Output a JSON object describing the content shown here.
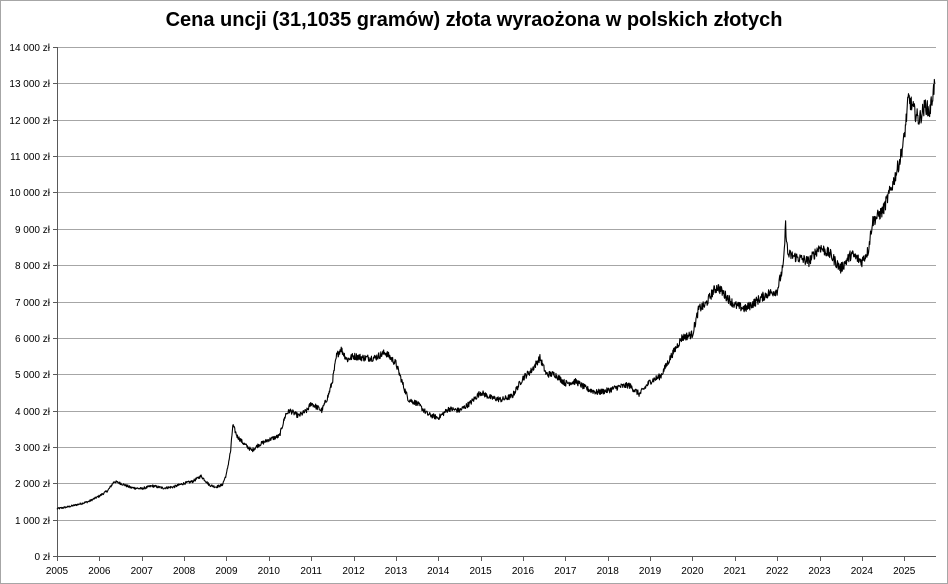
{
  "chart_data": {
    "type": "line",
    "title": "Cena uncji (31,1035 gramów) złota wyraożona w polskich złotych",
    "xlabel": "",
    "ylabel": "",
    "ylim": [
      0,
      14000
    ],
    "xlim": [
      2005,
      2025.75
    ],
    "grid": true,
    "legend": "none",
    "line_color": "#000000",
    "grid_color": "#a6a6a6",
    "y_ticks": [
      {
        "value": 0,
        "label": "0 zł"
      },
      {
        "value": 1000,
        "label": "1 000 zł"
      },
      {
        "value": 2000,
        "label": "2 000 zł"
      },
      {
        "value": 3000,
        "label": "3 000 zł"
      },
      {
        "value": 4000,
        "label": "4 000 zł"
      },
      {
        "value": 5000,
        "label": "5 000 zł"
      },
      {
        "value": 6000,
        "label": "6 000 zł"
      },
      {
        "value": 7000,
        "label": "7 000 zł"
      },
      {
        "value": 8000,
        "label": "8 000 zł"
      },
      {
        "value": 9000,
        "label": "9 000 zł"
      },
      {
        "value": 10000,
        "label": "10 000 zł"
      },
      {
        "value": 11000,
        "label": "11 000 zł"
      },
      {
        "value": 12000,
        "label": "12 000 zł"
      },
      {
        "value": 13000,
        "label": "13 000 zł"
      },
      {
        "value": 14000,
        "label": "14 000 zł"
      }
    ],
    "x_ticks": [
      "2005",
      "2006",
      "2007",
      "2008",
      "2009",
      "2010",
      "2011",
      "2012",
      "2013",
      "2014",
      "2015",
      "2016",
      "2017",
      "2018",
      "2019",
      "2020",
      "2021",
      "2022",
      "2023",
      "2024",
      "2025"
    ],
    "series": [
      {
        "x": [
          2005.0,
          2005.25,
          2005.5,
          2005.75,
          2006.0,
          2006.2,
          2006.35,
          2006.5,
          2006.75,
          2007.0,
          2007.25,
          2007.5,
          2007.75,
          2008.0,
          2008.2,
          2008.4,
          2008.6,
          2008.75,
          2008.9,
          2009.0,
          2009.1,
          2009.15,
          2009.25,
          2009.4,
          2009.6,
          2009.75,
          2010.0,
          2010.25,
          2010.4,
          2010.5,
          2010.7,
          2010.9,
          2011.0,
          2011.25,
          2011.4,
          2011.5,
          2011.6,
          2011.7,
          2011.85,
          2012.0,
          2012.25,
          2012.5,
          2012.75,
          2013.0,
          2013.2,
          2013.3,
          2013.5,
          2013.75,
          2014.0,
          2014.25,
          2014.5,
          2014.75,
          2015.0,
          2015.25,
          2015.5,
          2015.75,
          2016.0,
          2016.2,
          2016.4,
          2016.55,
          2016.75,
          2017.0,
          2017.25,
          2017.5,
          2017.75,
          2018.0,
          2018.25,
          2018.5,
          2018.75,
          2019.0,
          2019.25,
          2019.5,
          2019.75,
          2020.0,
          2020.15,
          2020.3,
          2020.5,
          2020.6,
          2020.75,
          2021.0,
          2021.25,
          2021.5,
          2021.75,
          2022.0,
          2022.15,
          2022.2,
          2022.25,
          2022.5,
          2022.75,
          2023.0,
          2023.25,
          2023.5,
          2023.75,
          2024.0,
          2024.15,
          2024.25,
          2024.5,
          2024.75,
          2024.9,
          2025.0,
          2025.1,
          2025.25,
          2025.35,
          2025.5,
          2025.6,
          2025.72
        ],
        "values": [
          1300,
          1350,
          1420,
          1500,
          1650,
          1800,
          2050,
          2000,
          1880,
          1850,
          1930,
          1870,
          1900,
          2000,
          2050,
          2200,
          1950,
          1900,
          1950,
          2250,
          2900,
          3600,
          3300,
          3100,
          2900,
          3050,
          3200,
          3300,
          3900,
          4000,
          3850,
          4000,
          4200,
          4000,
          4400,
          4800,
          5500,
          5700,
          5400,
          5500,
          5450,
          5450,
          5600,
          5300,
          4600,
          4300,
          4200,
          3900,
          3800,
          4050,
          4000,
          4200,
          4500,
          4350,
          4300,
          4400,
          4900,
          5100,
          5450,
          5000,
          5000,
          4750,
          4800,
          4600,
          4500,
          4550,
          4650,
          4700,
          4450,
          4800,
          4950,
          5500,
          6000,
          6100,
          6800,
          6900,
          7300,
          7400,
          7200,
          6900,
          6800,
          7000,
          7200,
          7300,
          8000,
          9100,
          8300,
          8200,
          8100,
          8500,
          8300,
          7900,
          8300,
          8100,
          8400,
          9200,
          9500,
          10300,
          10900,
          11500,
          12600,
          12200,
          12000,
          12400,
          12200,
          13000
        ]
      }
    ]
  }
}
